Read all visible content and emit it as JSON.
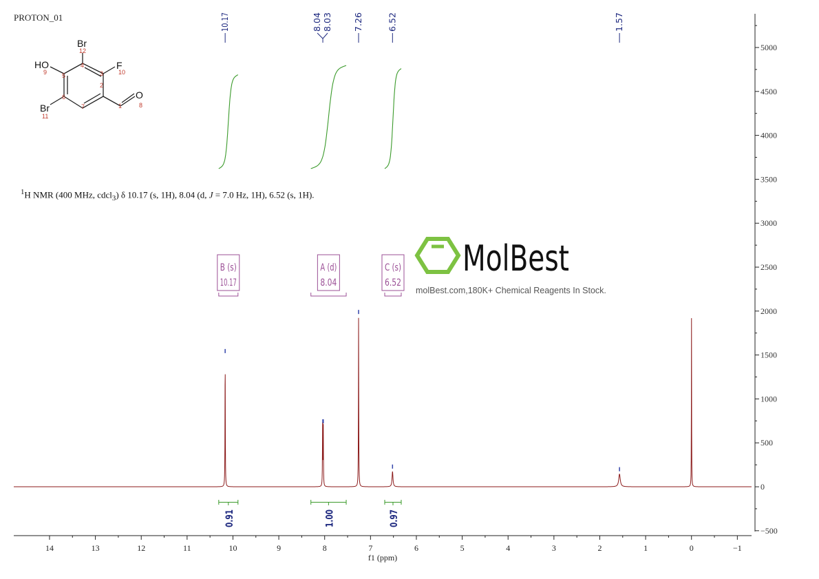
{
  "title": "PROTON_01",
  "description_line": {
    "sup": "1",
    "part1": "H NMR (400 MHz, cdcl",
    "sub": "3",
    "part2": ") δ 10.17 (s, 1H), 8.04 (d, ",
    "j": "J",
    "part3": " = 7.0 Hz, 1H), 6.52 (s, 1H)."
  },
  "structure": {
    "atoms": [
      "Br",
      "HO",
      "F",
      "Br",
      "O"
    ],
    "numbers": [
      "1",
      "2",
      "3",
      "4",
      "5",
      "6",
      "7",
      "8",
      "9",
      "10",
      "11",
      "12"
    ]
  },
  "watermark": {
    "brand": "MolBest",
    "tagline": "molBest.com,180K+ Chemical Reagents In Stock."
  },
  "colors": {
    "spectrum": "#8b1a1a",
    "integral": "#3a9a2a",
    "peak_label": "#1f2a80",
    "multiplet": "#9b4f96",
    "watermark_logo": "#7dc242"
  },
  "chart_data": {
    "type": "line",
    "xlabel": "f1 (ppm)",
    "ylabel": "",
    "xlim": [
      14.78,
      -1.31
    ],
    "ylim": [
      -556,
      5384
    ],
    "x_ticks": [
      "14",
      "13",
      "12",
      "11",
      "10",
      "9",
      "8",
      "7",
      "6",
      "5",
      "4",
      "3",
      "2",
      "1",
      "0",
      "−1"
    ],
    "x_tick_values": [
      14,
      13,
      12,
      11,
      10,
      9,
      8,
      7,
      6,
      5,
      4,
      3,
      2,
      1,
      0,
      -1
    ],
    "y_ticks": [
      "5000",
      "4500",
      "4000",
      "3500",
      "3000",
      "2500",
      "2000",
      "1500",
      "1000",
      "500",
      "0",
      "−500"
    ],
    "y_tick_values": [
      5000,
      4500,
      4000,
      3500,
      3000,
      2500,
      2000,
      1500,
      1000,
      500,
      0,
      -500
    ],
    "peaks": [
      {
        "ppm": 10.17,
        "height": 1490,
        "width": 0.004
      },
      {
        "ppm": 8.045,
        "height": 690,
        "width": 0.004
      },
      {
        "ppm": 8.03,
        "height": 680,
        "width": 0.004
      },
      {
        "ppm": 7.26,
        "height": 1935,
        "width": 0.004
      },
      {
        "ppm": 6.52,
        "height": 175,
        "width": 0.012
      },
      {
        "ppm": 1.57,
        "height": 145,
        "width": 0.02
      },
      {
        "ppm": 0.0,
        "height": 1960,
        "width": 0.003
      }
    ],
    "peak_labels": [
      "10.17",
      "8.04",
      "8.03",
      "7.26",
      "6.52",
      "1.57"
    ],
    "peak_label_ppm": [
      10.17,
      8.04,
      8.03,
      7.26,
      6.52,
      1.57
    ],
    "multiplets": [
      {
        "label": "B (s)",
        "shift": "10.17",
        "range": [
          10.31,
          9.89
        ]
      },
      {
        "label": "A (d)",
        "shift": "8.04",
        "range": [
          8.3,
          7.53
        ]
      },
      {
        "label": "C (s)",
        "shift": "6.52",
        "range": [
          6.69,
          6.33
        ]
      }
    ],
    "integrals": [
      {
        "value": "0.91",
        "range": [
          10.31,
          9.89
        ]
      },
      {
        "value": "1.00",
        "range": [
          8.3,
          7.53
        ]
      },
      {
        "value": "0.97",
        "range": [
          6.69,
          6.33
        ]
      }
    ],
    "grid": false
  }
}
